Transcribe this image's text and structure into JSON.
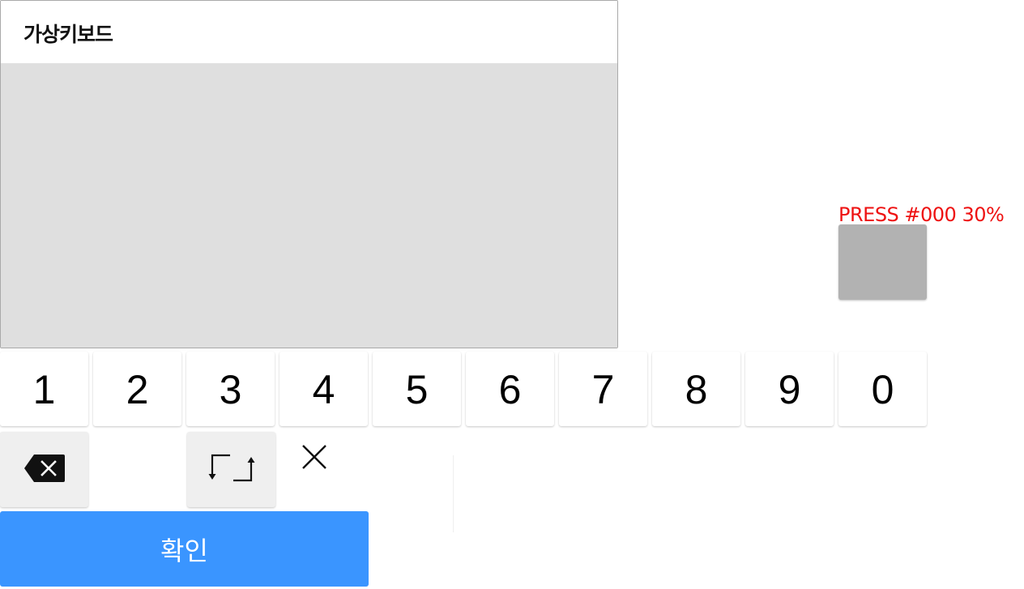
{
  "keyboard": {
    "title": "가상키보드",
    "number_keys": [
      "1",
      "2",
      "3",
      "4",
      "5",
      "6",
      "7",
      "8",
      "9",
      "0"
    ],
    "backspace_icon": "backspace-icon",
    "switch_icon": "switch-layout-icon",
    "close_icon": "close-icon",
    "confirm_label": "확인"
  },
  "press_sample": {
    "label": "PRESS #000 30%",
    "label_color": "#ee1111",
    "swatch_color": "#b2b2b2"
  },
  "colors": {
    "confirm": "#3a95ff",
    "panel_body": "#dfdfdf",
    "function_key": "#efefef"
  }
}
